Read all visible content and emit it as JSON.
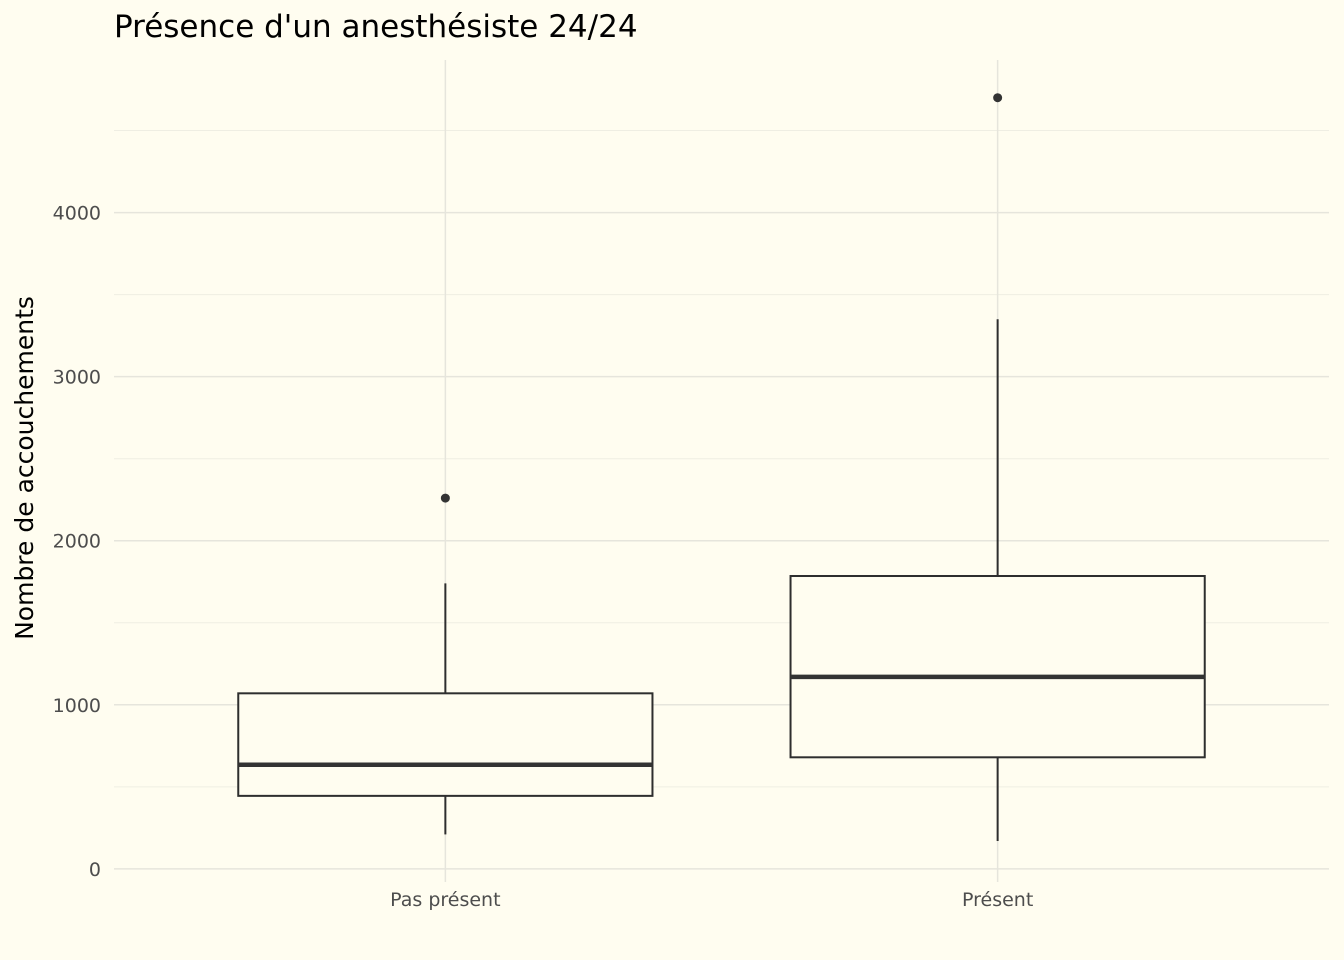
{
  "colors": {
    "background": "#fffdf0",
    "grid_major": "#e6e5dc",
    "grid_minor": "#efeee3",
    "box_stroke": "#2e2e2e",
    "median": "#333333",
    "outlier": "#333333",
    "title_text": "#000000",
    "axis_title_text": "#000000",
    "tick_text": "#4d4d4d"
  },
  "chart_data": {
    "type": "boxplot",
    "title": "Présence d'un anesthésiste 24/24",
    "xlabel": "",
    "ylabel": "Nombre de accouchements",
    "ylim": [
      -80,
      4930
    ],
    "y_ticks": [
      0,
      1000,
      2000,
      3000,
      4000
    ],
    "y_tick_labels": [
      "0",
      "1000",
      "2000",
      "3000",
      "4000"
    ],
    "grid": true,
    "legend": "none",
    "categories": [
      "Pas présent",
      "Présent"
    ],
    "boxes": [
      {
        "category": "Pas présent",
        "whisker_low": 210,
        "q1": 445,
        "median": 635,
        "q3": 1070,
        "whisker_high": 1740,
        "outliers": [
          2260
        ]
      },
      {
        "category": "Présent",
        "whisker_low": 170,
        "q1": 680,
        "median": 1170,
        "q3": 1785,
        "whisker_high": 3350,
        "outliers": [
          4700
        ]
      }
    ]
  }
}
